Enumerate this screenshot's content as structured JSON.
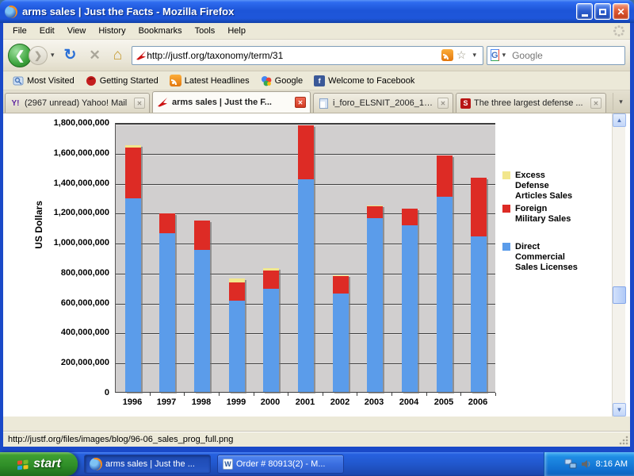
{
  "window": {
    "title": "arms sales | Just the Facts - Mozilla Firefox",
    "minimize": "",
    "maximize": "",
    "close": "x"
  },
  "menubar": {
    "items": [
      "File",
      "Edit",
      "View",
      "History",
      "Bookmarks",
      "Tools",
      "Help"
    ]
  },
  "navbar": {
    "url": "http://justf.org/taxonomy/term/31",
    "search_placeholder": "Google",
    "search_engine_initial": "G"
  },
  "icons": {
    "back_glyph": "❮",
    "forward_glyph": "❯",
    "reload_glyph": "↻",
    "stop_glyph": "✕",
    "home_glyph": "⌂",
    "star_glyph": "☆",
    "dropdown_glyph": "▾",
    "scroll_up": "▲",
    "scroll_down": "▼",
    "scroll_left": "◄",
    "scroll_right": "►",
    "yahoo_glyph": "Y!",
    "scoop_glyph": "S",
    "facebook_glyph": "f",
    "google_glyph": "g",
    "word_glyph": "W"
  },
  "bookmarks": {
    "items": [
      "Most Visited",
      "Getting Started",
      "Latest Headlines",
      "Google",
      "Welcome to Facebook"
    ]
  },
  "tabs": [
    {
      "label": "(2967 unread) Yahoo! Mail",
      "active": false
    },
    {
      "label": "arms sales  |  Just the F...",
      "active": true
    },
    {
      "label": "i_foro_ELSNIT_2006_10_0...",
      "active": false
    },
    {
      "label": "The three largest defense ...",
      "active": false
    }
  ],
  "statusbar": {
    "text": "http://justf.org/files/images/blog/96-06_sales_prog_full.png"
  },
  "taskbar": {
    "start_label": "start",
    "buttons": [
      {
        "label": "arms sales | Just the ...",
        "pressed": true
      },
      {
        "label": "Order # 80913(2) - M...",
        "pressed": false
      }
    ],
    "clock": "8:16 AM"
  },
  "chart_data": {
    "type": "bar",
    "stacked": true,
    "title": "",
    "xlabel": "",
    "ylabel": "US Dollars",
    "ylim": [
      0,
      1800000000
    ],
    "y_tick_step": 200000000,
    "y_ticks": [
      "0",
      "200,000,000",
      "400,000,000",
      "600,000,000",
      "800,000,000",
      "1,000,000,000",
      "1,200,000,000",
      "1,400,000,000",
      "1,600,000,000",
      "1,800,000,000"
    ],
    "grid": true,
    "plot_bg": "#D1CFCF",
    "legend_position": "right",
    "categories": [
      "1996",
      "1997",
      "1998",
      "1999",
      "2000",
      "2001",
      "2002",
      "2003",
      "2004",
      "2005",
      "2006"
    ],
    "series": [
      {
        "name": "Direct Commercial Sales Licenses",
        "color": "#5B9CEA",
        "values": [
          1290000000,
          1060000000,
          950000000,
          610000000,
          690000000,
          1420000000,
          655000000,
          1160000000,
          1110000000,
          1300000000,
          1040000000
        ]
      },
      {
        "name": "Foreign Military Sales",
        "color": "#DD2B25",
        "values": [
          340000000,
          130000000,
          195000000,
          120000000,
          120000000,
          360000000,
          115000000,
          80000000,
          110000000,
          275000000,
          390000000
        ]
      },
      {
        "name": "Excess Defense Articles Sales",
        "color": "#F2E68C",
        "values": [
          15000000,
          0,
          0,
          25000000,
          15000000,
          0,
          5000000,
          5000000,
          0,
          0,
          0
        ]
      }
    ]
  }
}
